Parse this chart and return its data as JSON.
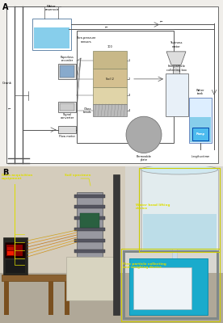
{
  "fig_bg": "#f0eeea",
  "panel_a_bg": "#f0eeea",
  "schematic_bg": "#ffffff",
  "water_blue": "#87CEEB",
  "pump_blue": "#4DBBEE",
  "soil_tan": "#C8B888",
  "soil_tan2": "#D4C090",
  "glass_gray": "#BBBBBB",
  "photo_bg_left": "#c8b89a",
  "photo_bg_wall": "#d8d4cc",
  "photo_table": "#b89060",
  "photo_cabinet": "#d0ccb8",
  "photo_dark": "#303020",
  "photo_cylinder": "#989890",
  "photo_blue_tank": "#30AACC",
  "photo_right_bg": "#c8c4bc",
  "photo_floor": "#a09080",
  "yellow_annot": "#DDDD00",
  "line_color": "#555555"
}
